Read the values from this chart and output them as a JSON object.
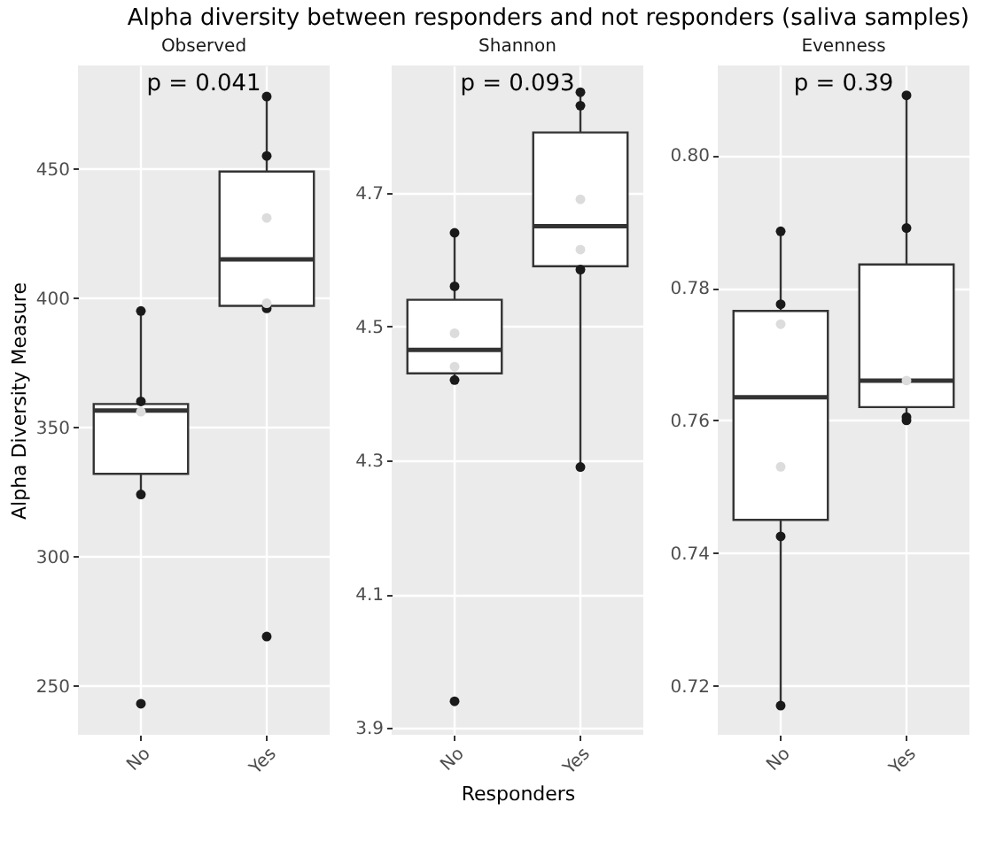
{
  "chart_data": [
    {
      "type": "box",
      "title": "Alpha diversity between responders and not responders (saliva samples)",
      "subtitle": "Observed",
      "ylabel": "Alpha Diversity Measure",
      "categories": [
        "No",
        "Yes"
      ],
      "ylim": [
        231,
        490
      ],
      "yticks": [
        250,
        300,
        350,
        400,
        450
      ],
      "grid": true,
      "annotations": [
        "p = 0.041"
      ],
      "boxes": [
        {
          "low": 324,
          "q1": 332,
          "median": 356.5,
          "q3": 359,
          "high": 395,
          "outliers": [
            243
          ]
        },
        {
          "low": 396,
          "q1": 397,
          "median": 415,
          "q3": 449,
          "high": 478,
          "outliers": [
            269
          ]
        }
      ],
      "series": [
        {
          "type": "scatter",
          "color": "#1a1a1a",
          "x": [
            "No",
            "No",
            "No",
            "Yes",
            "Yes",
            "Yes"
          ],
          "values": [
            395,
            360,
            324,
            478,
            455,
            396
          ]
        },
        {
          "type": "scatter",
          "color": "#dcdcdc",
          "x": [
            "No",
            "Yes",
            "Yes"
          ],
          "values": [
            356,
            431,
            398
          ]
        }
      ]
    },
    {
      "type": "box",
      "subtitle": "Shannon",
      "xlabel": "Responders",
      "categories": [
        "No",
        "Yes"
      ],
      "ylim": [
        3.89,
        4.89
      ],
      "yticks": [
        3.9,
        4.1,
        4.3,
        4.5,
        4.7
      ],
      "grid": true,
      "annotations": [
        "p = 0.093"
      ],
      "boxes": [
        {
          "low": 4.42,
          "q1": 4.43,
          "median": 4.465,
          "q3": 4.54,
          "high": 4.64,
          "outliers": [
            3.94
          ]
        },
        {
          "low": 4.29,
          "q1": 4.59,
          "median": 4.65,
          "q3": 4.79,
          "high": 4.85
        }
      ],
      "series": [
        {
          "type": "scatter",
          "color": "#1a1a1a",
          "x": [
            "No",
            "No",
            "No",
            "Yes",
            "Yes",
            "Yes",
            "Yes"
          ],
          "values": [
            4.64,
            4.56,
            4.42,
            4.85,
            4.83,
            4.585,
            4.29
          ]
        },
        {
          "type": "scatter",
          "color": "#dcdcdc",
          "x": [
            "No",
            "No",
            "Yes",
            "Yes"
          ],
          "values": [
            4.49,
            4.44,
            4.69,
            4.615
          ]
        }
      ]
    },
    {
      "type": "box",
      "subtitle": "Evenness",
      "categories": [
        "No",
        "Yes"
      ],
      "ylim": [
        0.7126,
        0.8135
      ],
      "yticks": [
        0.72,
        0.74,
        0.76,
        0.78,
        {
          "value": 0.8,
          "label": "0.80"
        }
      ],
      "grid": true,
      "annotations": [
        "p = 0.39"
      ],
      "boxes": [
        {
          "low": 0.717,
          "q1": 0.745,
          "median": 0.7635,
          "q3": 0.7765,
          "high": 0.7885
        },
        {
          "low": 0.76,
          "q1": 0.762,
          "median": 0.766,
          "q3": 0.7835,
          "high": 0.809
        }
      ],
      "series": [
        {
          "type": "scatter",
          "color": "#1a1a1a",
          "x": [
            "No",
            "No",
            "No",
            "No",
            "Yes",
            "Yes",
            "Yes",
            "Yes"
          ],
          "values": [
            0.7885,
            0.7775,
            0.7425,
            0.717,
            0.809,
            0.789,
            0.7605,
            0.76
          ]
        },
        {
          "type": "scatter",
          "color": "#dcdcdc",
          "x": [
            "No",
            "No",
            "Yes"
          ],
          "values": [
            0.7745,
            0.753,
            0.766
          ]
        }
      ]
    }
  ]
}
